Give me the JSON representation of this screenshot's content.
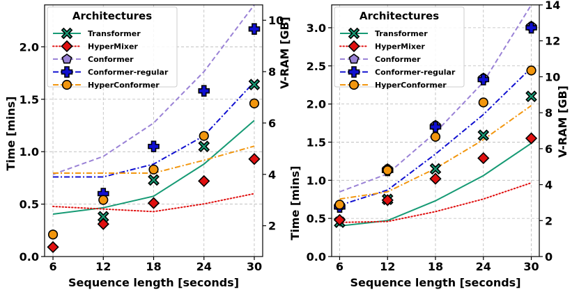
{
  "chart_data": [
    {
      "type": "line+scatter",
      "panel": "left",
      "xlabel": "Sequence length [seconds]",
      "ylabel": "Time [mins]",
      "ylabel_right": "V-RAM [GB]",
      "legend_title": "Architectures",
      "legend_position": "top-left",
      "x": [
        6,
        12,
        18,
        24,
        30
      ],
      "xlim": [
        5,
        31
      ],
      "ylim": [
        0,
        2.4
      ],
      "ylim_right": [
        0.8,
        10.6
      ],
      "yticks": [
        0.0,
        0.5,
        1.0,
        1.5,
        2.0
      ],
      "yticks_right": [
        2,
        4,
        6,
        8,
        10
      ],
      "grid": true,
      "series": [
        {
          "name": "Transformer",
          "color": "#169a74",
          "dash": "solid",
          "marker": "x-circle",
          "time": [
            null,
            0.38,
            0.73,
            1.05,
            1.64
          ],
          "vram": [
            2.45,
            2.7,
            3.15,
            4.4,
            6.1
          ]
        },
        {
          "name": "HyperMixer",
          "color": "#e01010",
          "dash": "dotted",
          "marker": "diamond",
          "time": [
            0.09,
            0.31,
            0.51,
            0.72,
            0.93
          ],
          "vram": [
            2.75,
            2.65,
            2.55,
            2.85,
            3.25
          ]
        },
        {
          "name": "Conformer",
          "color": "#9a82d6",
          "dash": "dashed",
          "marker": "pentagon",
          "time": [
            null,
            null,
            null,
            null,
            null
          ],
          "vram": [
            4.0,
            4.7,
            6.0,
            8.0,
            10.6
          ]
        },
        {
          "name": "Conformer-regular",
          "color": "#1010d0",
          "dash": "dashdot",
          "marker": "plus",
          "time": [
            null,
            0.6,
            1.05,
            1.58,
            2.17
          ],
          "vram": [
            3.9,
            3.9,
            4.4,
            5.5,
            7.6
          ]
        },
        {
          "name": "HyperConformer",
          "color": "#f2960e",
          "dash": "dashdot",
          "marker": "circle",
          "time": [
            0.21,
            0.54,
            0.83,
            1.15,
            1.46
          ],
          "vram": [
            4.05,
            4.05,
            4.05,
            4.55,
            5.1
          ]
        }
      ]
    },
    {
      "type": "line+scatter",
      "panel": "right",
      "xlabel": "Sequence length [seconds]",
      "ylabel": "Time [mins]",
      "ylabel_right": "V-RAM [GB]",
      "legend_title": "Architectures",
      "legend_position": "top-left",
      "x": [
        6,
        12,
        18,
        24,
        30
      ],
      "xlim": [
        5,
        31
      ],
      "ylim": [
        0,
        3.3
      ],
      "ylim_right": [
        0,
        14
      ],
      "yticks": [
        0.0,
        0.5,
        1.0,
        1.5,
        2.0,
        2.5,
        3.0
      ],
      "yticks_right": [
        0,
        2,
        4,
        6,
        8,
        10,
        12,
        14
      ],
      "grid": true,
      "series": [
        {
          "name": "Transformer",
          "color": "#169a74",
          "dash": "solid",
          "marker": "x-circle",
          "time": [
            0.45,
            0.75,
            1.15,
            1.59,
            2.1
          ],
          "vram": [
            1.7,
            2.0,
            3.1,
            4.5,
            6.3
          ]
        },
        {
          "name": "HyperMixer",
          "color": "#e01010",
          "dash": "dotted",
          "marker": "diamond",
          "time": [
            0.48,
            0.74,
            1.02,
            1.29,
            1.55
          ],
          "vram": [
            1.9,
            1.95,
            2.5,
            3.2,
            4.1
          ]
        },
        {
          "name": "Conformer",
          "color": "#9a82d6",
          "dash": "dashed",
          "marker": "pentagon",
          "time": [
            0.67,
            1.15,
            1.72,
            2.34,
            3.02
          ],
          "vram": [
            3.6,
            4.6,
            6.9,
            9.7,
            14.0
          ]
        },
        {
          "name": "Conformer-regular",
          "color": "#1010d0",
          "dash": "dashdot",
          "marker": "plus",
          "time": [
            0.65,
            1.13,
            1.7,
            2.32,
            3.0
          ],
          "vram": [
            2.85,
            3.7,
            5.7,
            7.9,
            10.5
          ]
        },
        {
          "name": "HyperConformer",
          "color": "#f2960e",
          "dash": "dashdot",
          "marker": "circle",
          "time": [
            0.68,
            1.13,
            1.57,
            2.02,
            2.44
          ],
          "vram": [
            3.2,
            3.6,
            4.9,
            6.5,
            8.4
          ]
        }
      ]
    }
  ]
}
